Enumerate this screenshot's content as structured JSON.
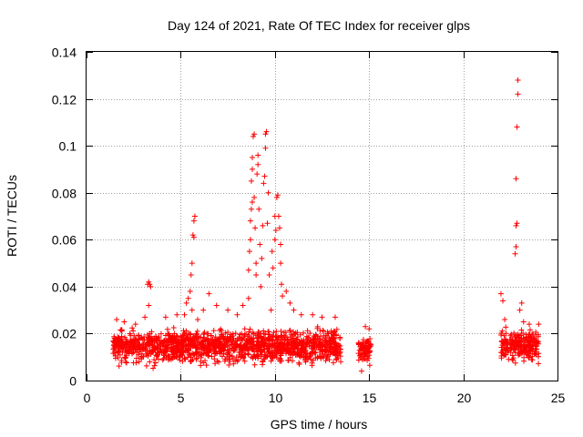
{
  "chart_data": {
    "type": "scatter",
    "title": "Day 124 of 2021, Rate Of TEC Index for receiver glps",
    "xlabel": "GPS time / hours",
    "ylabel": "ROTI / TECUs",
    "xlim": [
      0,
      25
    ],
    "ylim": [
      0,
      0.14
    ],
    "xticks": [
      "0",
      "5",
      "10",
      "15",
      "20",
      "25"
    ],
    "yticks": [
      "0",
      "0.02",
      "0.04",
      "0.06",
      "0.08",
      "0.1",
      "0.12",
      "0.14"
    ],
    "grid": true,
    "marker": "+",
    "color": "#ff0000",
    "band_segments": [
      {
        "x_start": 1.4,
        "x_end": 13.5,
        "y_low": 0.005,
        "y_high": 0.024
      },
      {
        "x_start": 14.4,
        "x_end": 15.1,
        "y_low": 0.006,
        "y_high": 0.02
      },
      {
        "x_start": 22.0,
        "x_end": 24.0,
        "y_low": 0.006,
        "y_high": 0.024
      }
    ],
    "outliers": [
      [
        1.6,
        0.026
      ],
      [
        2.0,
        0.025
      ],
      [
        2.6,
        0.024
      ],
      [
        3.1,
        0.027
      ],
      [
        3.3,
        0.032
      ],
      [
        3.25,
        0.041
      ],
      [
        3.3,
        0.042
      ],
      [
        3.35,
        0.041
      ],
      [
        3.4,
        0.04
      ],
      [
        4.2,
        0.027
      ],
      [
        4.8,
        0.028
      ],
      [
        5.2,
        0.028
      ],
      [
        5.3,
        0.033
      ],
      [
        5.4,
        0.035
      ],
      [
        5.5,
        0.038
      ],
      [
        5.55,
        0.045
      ],
      [
        5.6,
        0.05
      ],
      [
        5.65,
        0.062
      ],
      [
        5.7,
        0.061
      ],
      [
        5.7,
        0.068
      ],
      [
        5.75,
        0.07
      ],
      [
        5.6,
        0.03
      ],
      [
        5.9,
        0.026
      ],
      [
        6.2,
        0.03
      ],
      [
        6.5,
        0.037
      ],
      [
        6.9,
        0.032
      ],
      [
        7.5,
        0.03
      ],
      [
        8.0,
        0.028
      ],
      [
        8.3,
        0.032
      ],
      [
        8.6,
        0.035
      ],
      [
        8.6,
        0.047
      ],
      [
        8.65,
        0.055
      ],
      [
        8.7,
        0.06
      ],
      [
        8.7,
        0.068
      ],
      [
        8.75,
        0.073
      ],
      [
        8.8,
        0.076
      ],
      [
        8.75,
        0.085
      ],
      [
        8.8,
        0.09
      ],
      [
        8.8,
        0.095
      ],
      [
        8.85,
        0.104
      ],
      [
        8.9,
        0.105
      ],
      [
        8.9,
        0.078
      ],
      [
        8.95,
        0.065
      ],
      [
        9.0,
        0.05
      ],
      [
        9.0,
        0.045
      ],
      [
        9.05,
        0.088
      ],
      [
        9.1,
        0.092
      ],
      [
        9.1,
        0.096
      ],
      [
        9.15,
        0.073
      ],
      [
        9.2,
        0.058
      ],
      [
        9.25,
        0.04
      ],
      [
        9.3,
        0.052
      ],
      [
        9.35,
        0.066
      ],
      [
        9.4,
        0.084
      ],
      [
        9.45,
        0.087
      ],
      [
        9.5,
        0.099
      ],
      [
        9.5,
        0.105
      ],
      [
        9.55,
        0.106
      ],
      [
        9.6,
        0.067
      ],
      [
        9.65,
        0.08
      ],
      [
        9.7,
        0.045
      ],
      [
        9.8,
        0.03
      ],
      [
        9.85,
        0.055
      ],
      [
        9.9,
        0.048
      ],
      [
        10.0,
        0.07
      ],
      [
        10.0,
        0.06
      ],
      [
        10.05,
        0.064
      ],
      [
        10.1,
        0.078
      ],
      [
        10.15,
        0.079
      ],
      [
        10.2,
        0.07
      ],
      [
        10.25,
        0.065
      ],
      [
        10.3,
        0.058
      ],
      [
        10.3,
        0.05
      ],
      [
        10.35,
        0.041
      ],
      [
        10.4,
        0.036
      ],
      [
        10.6,
        0.038
      ],
      [
        10.8,
        0.033
      ],
      [
        11.0,
        0.03
      ],
      [
        11.4,
        0.028
      ],
      [
        12.0,
        0.028
      ],
      [
        12.5,
        0.027
      ],
      [
        13.2,
        0.027
      ],
      [
        14.8,
        0.023
      ],
      [
        15.0,
        0.022
      ],
      [
        14.6,
        0.004
      ],
      [
        22.0,
        0.037
      ],
      [
        22.1,
        0.034
      ],
      [
        22.2,
        0.026
      ],
      [
        22.75,
        0.054
      ],
      [
        22.8,
        0.057
      ],
      [
        22.8,
        0.066
      ],
      [
        22.85,
        0.067
      ],
      [
        22.8,
        0.086
      ],
      [
        22.85,
        0.108
      ],
      [
        22.9,
        0.122
      ],
      [
        22.9,
        0.128
      ],
      [
        23.0,
        0.03
      ],
      [
        23.1,
        0.033
      ],
      [
        23.2,
        0.025
      ],
      [
        23.5,
        0.024
      ],
      [
        24.0,
        0.024
      ]
    ]
  }
}
